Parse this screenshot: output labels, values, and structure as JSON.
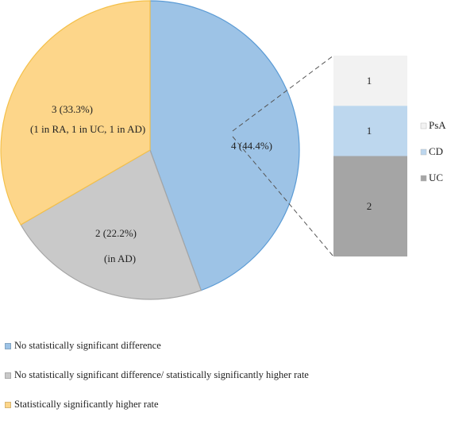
{
  "chart_data": [
    {
      "type": "pie",
      "title": "",
      "slices": [
        {
          "name": "No statistically significant difference",
          "value": 4,
          "label": "4 (44.4%)",
          "sublabel": "",
          "color": "#9dc3e6"
        },
        {
          "name": "No statistically significant difference/ statistically significantly higher rate",
          "value": 2,
          "label": "2 (22.2%)",
          "sublabel": "(in AD)",
          "color": "#c9c9c9"
        },
        {
          "name": "Statistically significantly higher rate",
          "value": 3,
          "label": "3 (33.3%)",
          "sublabel": "(1 in RA, 1 in UC, 1 in AD)",
          "color": "#fdd68a"
        }
      ],
      "legend_position": "bottom-left"
    },
    {
      "type": "bar",
      "stacked": true,
      "title": "",
      "segments": [
        {
          "name": "PsA",
          "value": 1,
          "label": "1",
          "color": "#f2f2f2"
        },
        {
          "name": "CD",
          "value": 1,
          "label": "1",
          "color": "#bdd7ee"
        },
        {
          "name": "UC",
          "value": 2,
          "label": "2",
          "color": "#a5a5a5"
        }
      ],
      "legend_position": "right"
    }
  ],
  "colors": {
    "pie_outline_blue": "#5b9bd5",
    "pie_outline_gray": "#a5a5a5",
    "pie_outline_gold": "#f4c04a",
    "connector": "#555555"
  }
}
